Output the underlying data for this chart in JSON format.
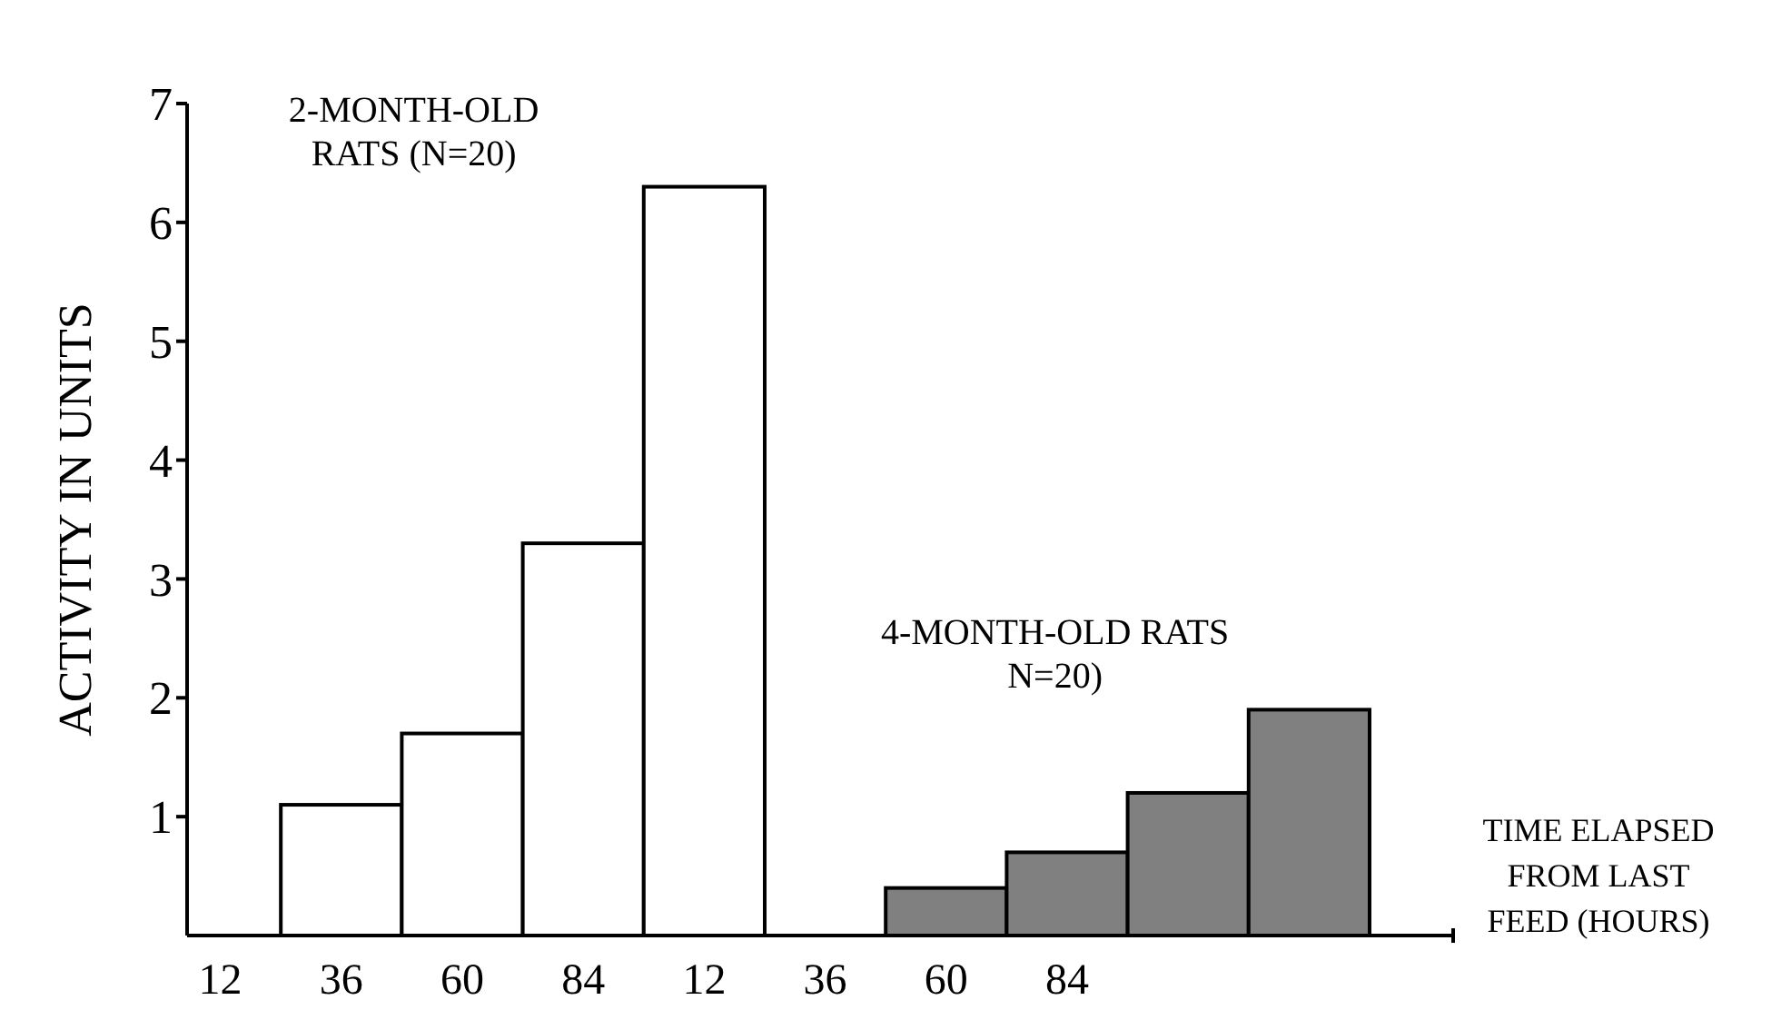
{
  "chart_data": {
    "type": "bar",
    "ylabel": "ACTIVITY IN UNITS",
    "xlabel": "TIME ELAPSED\nFROM LAST\nFEED (HOURS)",
    "categories": [
      "12",
      "36",
      "60",
      "84",
      "12",
      "36",
      "60",
      "84",
      null,
      null
    ],
    "ylim": [
      0,
      7
    ],
    "yticks": [
      1,
      2,
      3,
      4,
      5,
      6,
      7
    ],
    "legend": false,
    "grid": false,
    "series": [
      {
        "name": "2-MONTH-OLD\nRATS (N=20)",
        "color": "#ffffff",
        "values": [
          null,
          1.1,
          1.7,
          3.3,
          6.3,
          null,
          null,
          null,
          null,
          null
        ]
      },
      {
        "name": "4-MONTH-OLD RATS\nN=20)",
        "color": "#808080",
        "values": [
          null,
          null,
          null,
          null,
          null,
          null,
          0.4,
          0.7,
          1.2,
          1.9
        ]
      }
    ]
  }
}
